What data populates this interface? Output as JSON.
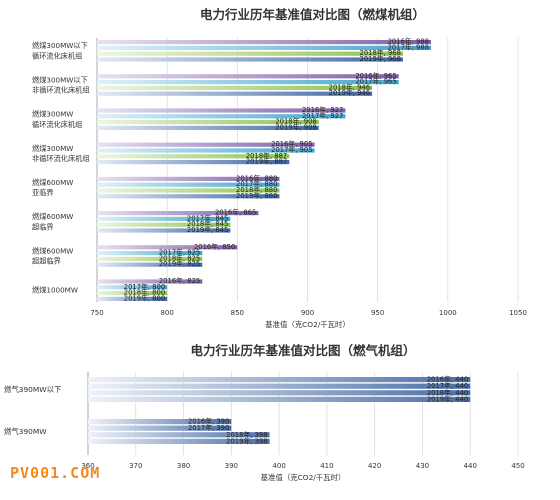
{
  "watermark": "PV001.COM",
  "colors": {
    "y2016": "#7d5fa8",
    "y2017": "#43a7c9",
    "y2018": "#8cc34d",
    "y2019": "#3f66a8",
    "grid": "#d6d6d6",
    "axis": "#999999",
    "text": "#333333"
  },
  "chart_data": [
    {
      "type": "bar",
      "orientation": "horizontal",
      "title": "电力行业历年基准值对比图（燃煤机组）",
      "xlabel": "基准值（克CO2/千瓦时）",
      "xlim": [
        750,
        1050
      ],
      "xticks": [
        "750",
        "800",
        "850",
        "900",
        "950",
        "1000",
        "1050"
      ],
      "grid": true,
      "series_order": [
        "2016年",
        "2017年",
        "2018年",
        "2019年"
      ],
      "categories": [
        {
          "label_lines": [
            "燃煤300MW以下",
            "循环流化床机组"
          ],
          "values": [
            988,
            988,
            968,
            968
          ],
          "labels": [
            "2016年, 988",
            "2017年, 988",
            "2018年, 968",
            "2019年, 968"
          ]
        },
        {
          "label_lines": [
            "燃煤300MW以下",
            "非循环流化床机组"
          ],
          "values": [
            965,
            965,
            946,
            946
          ],
          "labels": [
            "2016年, 965",
            "2017年, 965",
            "2018年, 946",
            "2019年, 946"
          ]
        },
        {
          "label_lines": [
            "燃煤300MW",
            "循环流化床机组"
          ],
          "values": [
            927,
            927,
            908,
            908
          ],
          "labels": [
            "2016年, 927",
            "2017年, 927",
            "2018年, 908",
            "2019年, 908"
          ]
        },
        {
          "label_lines": [
            "燃煤300MW",
            "非循环流化床机组"
          ],
          "values": [
            905,
            905,
            887,
            887
          ],
          "labels": [
            "2016年, 905",
            "2017年, 905",
            "2018年, 887",
            "2019年, 887"
          ]
        },
        {
          "label_lines": [
            "燃煤600MW",
            "亚临界"
          ],
          "values": [
            880,
            880,
            880,
            880
          ],
          "labels": [
            "2016年, 880",
            "2017年, 880",
            "2018年, 880",
            "2019年, 880"
          ]
        },
        {
          "label_lines": [
            "燃煤600MW",
            "超临界"
          ],
          "values": [
            865,
            845,
            845,
            845
          ],
          "labels": [
            "2016年, 865",
            "2017年, 845",
            "2018年, 845",
            "2019年, 845"
          ]
        },
        {
          "label_lines": [
            "燃煤600MW",
            "超超临界"
          ],
          "values": [
            850,
            825,
            825,
            825
          ],
          "labels": [
            "2016年, 850",
            "2017年, 825",
            "2018年, 825",
            "2019年, 825"
          ]
        },
        {
          "label_lines": [
            "燃煤1000MW"
          ],
          "values": [
            825,
            800,
            800,
            800
          ],
          "labels": [
            "2016年, 825",
            "2017年, 800",
            "2018年, 800",
            "2019年, 800"
          ]
        }
      ]
    },
    {
      "type": "bar",
      "orientation": "horizontal",
      "title": "电力行业历年基准值对比图（燃气机组）",
      "xlabel": "基准值（克CO2/千瓦时）",
      "xlim": [
        360,
        450
      ],
      "xticks": [
        "360",
        "370",
        "380",
        "390",
        "400",
        "410",
        "420",
        "430",
        "440",
        "450"
      ],
      "grid": true,
      "series_order": [
        "2016年",
        "2017年",
        "2018年",
        "2019年"
      ],
      "categories": [
        {
          "label_lines": [
            "燃气390MW以下"
          ],
          "values": [
            440,
            440,
            440,
            440
          ],
          "labels": [
            "2016年, 440",
            "2017年, 440",
            "2018年, 440",
            "2019年, 440"
          ]
        },
        {
          "label_lines": [
            "燃气390MW"
          ],
          "values": [
            390,
            390,
            398,
            398
          ],
          "labels": [
            "2016年, 390",
            "2017年, 390",
            "2018年, 398",
            "2019年, 398"
          ]
        }
      ]
    }
  ]
}
